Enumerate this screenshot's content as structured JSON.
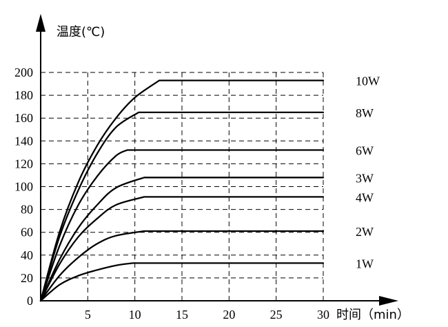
{
  "chart_data": {
    "type": "line",
    "ylabel": "温度(℃)",
    "xlabel": "时间（min）",
    "xlim": [
      0,
      30
    ],
    "ylim": [
      0,
      200
    ],
    "x_ticks": [
      0,
      5,
      10,
      15,
      20,
      25,
      30
    ],
    "y_ticks": [
      0,
      20,
      40,
      60,
      80,
      100,
      120,
      140,
      160,
      180,
      200
    ],
    "grid": true,
    "series": [
      {
        "name": "10W",
        "points": [
          [
            0,
            0
          ],
          [
            2,
            60
          ],
          [
            4,
            104
          ],
          [
            6,
            136
          ],
          [
            8,
            160
          ],
          [
            10,
            178
          ],
          [
            12.6,
            193
          ],
          [
            30,
            193
          ]
        ]
      },
      {
        "name": "8W",
        "points": [
          [
            0,
            0
          ],
          [
            2,
            56
          ],
          [
            4,
            97
          ],
          [
            6,
            129
          ],
          [
            8,
            152
          ],
          [
            10.4,
            165
          ],
          [
            30,
            165
          ]
        ]
      },
      {
        "name": "6W",
        "points": [
          [
            0,
            0
          ],
          [
            2,
            48
          ],
          [
            4,
            84
          ],
          [
            6,
            109
          ],
          [
            8,
            127
          ],
          [
            9.2,
            132
          ],
          [
            30,
            132
          ]
        ]
      },
      {
        "name": "3W",
        "points": [
          [
            0,
            0
          ],
          [
            2,
            36
          ],
          [
            4,
            64
          ],
          [
            6,
            84
          ],
          [
            8,
            99
          ],
          [
            11,
            108
          ],
          [
            30,
            108
          ]
        ]
      },
      {
        "name": "4W",
        "points": [
          [
            0,
            0
          ],
          [
            2,
            32
          ],
          [
            4,
            56
          ],
          [
            6,
            72
          ],
          [
            8,
            84
          ],
          [
            11,
            91
          ],
          [
            30,
            91
          ]
        ]
      },
      {
        "name": "2W",
        "points": [
          [
            0,
            0
          ],
          [
            2,
            22
          ],
          [
            4,
            38
          ],
          [
            6,
            50
          ],
          [
            8,
            57
          ],
          [
            11,
            61
          ],
          [
            30,
            61
          ]
        ]
      },
      {
        "name": "1W",
        "points": [
          [
            0,
            0
          ],
          [
            2,
            14
          ],
          [
            4,
            22
          ],
          [
            6,
            27
          ],
          [
            8,
            31
          ],
          [
            9.8,
            33
          ],
          [
            30,
            33
          ]
        ]
      }
    ]
  }
}
